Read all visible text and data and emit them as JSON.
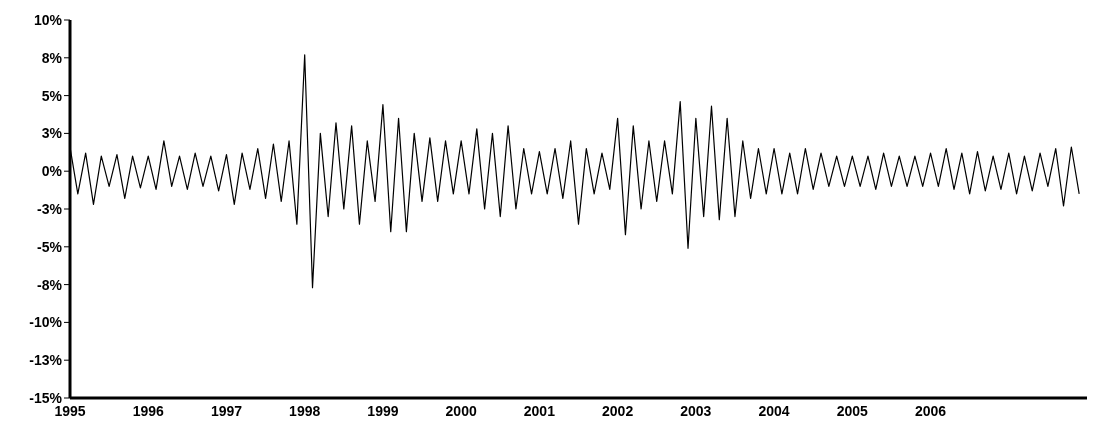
{
  "chart_data": {
    "type": "line",
    "x": [
      1995.0,
      1995.1,
      1995.2,
      1995.3,
      1995.4,
      1995.5,
      1995.6,
      1995.7,
      1995.8,
      1995.9,
      1996.0,
      1996.1,
      1996.2,
      1996.3,
      1996.4,
      1996.5,
      1996.6,
      1996.7,
      1996.8,
      1996.9,
      1997.0,
      1997.1,
      1997.2,
      1997.3,
      1997.4,
      1997.5,
      1997.6,
      1997.7,
      1997.8,
      1997.9,
      1998.0,
      1998.1,
      1998.2,
      1998.3,
      1998.4,
      1998.5,
      1998.6,
      1998.7,
      1998.8,
      1998.9,
      1999.0,
      1999.1,
      1999.2,
      1999.3,
      1999.4,
      1999.5,
      1999.6,
      1999.7,
      1999.8,
      1999.9,
      2000.0,
      2000.1,
      2000.2,
      2000.3,
      2000.4,
      2000.5,
      2000.6,
      2000.7,
      2000.8,
      2000.9,
      2001.0,
      2001.1,
      2001.2,
      2001.3,
      2001.4,
      2001.5,
      2001.6,
      2001.7,
      2001.8,
      2001.9,
      2002.0,
      2002.1,
      2002.2,
      2002.3,
      2002.4,
      2002.5,
      2002.6,
      2002.7,
      2002.8,
      2002.9,
      2003.0,
      2003.1,
      2003.2,
      2003.3,
      2003.4,
      2003.5,
      2003.6,
      2003.7,
      2003.8,
      2003.9,
      2004.0,
      2004.1,
      2004.2,
      2004.3,
      2004.4,
      2004.5,
      2004.6,
      2004.7,
      2004.8,
      2004.9,
      2005.0,
      2005.1,
      2005.2,
      2005.3,
      2005.4,
      2005.5,
      2005.6,
      2005.7,
      2005.8,
      2005.9,
      2006.0,
      2006.1,
      2006.2,
      2006.3,
      2006.4,
      2006.5,
      2006.6,
      2006.7,
      2006.8,
      2006.9,
      2007.0,
      2007.1,
      2007.2,
      2007.3,
      2007.4,
      2007.5,
      2007.6,
      2007.7,
      2007.8,
      2007.9
    ],
    "series": [
      {
        "color": "#000000",
        "values": [
          1.6,
          -1.5,
          1.2,
          -2.2,
          1.0,
          -1.0,
          1.1,
          -1.8,
          1.0,
          -1.1,
          1.0,
          -1.2,
          2.0,
          -1.0,
          1.0,
          -1.2,
          1.2,
          -1.0,
          1.0,
          -1.3,
          1.1,
          -2.2,
          1.2,
          -1.2,
          1.5,
          -1.8,
          1.8,
          -2.0,
          2.0,
          -3.5,
          7.7,
          -7.7,
          2.5,
          -3.0,
          3.2,
          -2.5,
          3.0,
          -3.5,
          2.0,
          -2.0,
          4.4,
          -4.0,
          3.5,
          -4.0,
          2.5,
          -2.0,
          2.2,
          -2.0,
          2.0,
          -1.5,
          2.0,
          -1.5,
          2.8,
          -2.5,
          2.5,
          -3.0,
          3.0,
          -2.5,
          1.5,
          -1.5,
          1.3,
          -1.5,
          1.5,
          -1.8,
          2.0,
          -3.5,
          1.5,
          -1.5,
          1.2,
          -1.2,
          3.5,
          -4.2,
          3.0,
          -2.5,
          2.0,
          -2.0,
          2.0,
          -1.5,
          4.6,
          -5.1,
          3.5,
          -3.0,
          4.3,
          -3.2,
          3.5,
          -3.0,
          2.0,
          -1.8,
          1.5,
          -1.5,
          1.5,
          -1.5,
          1.2,
          -1.5,
          1.5,
          -1.2,
          1.2,
          -1.0,
          1.0,
          -1.0,
          1.0,
          -1.0,
          1.0,
          -1.2,
          1.2,
          -1.0,
          1.0,
          -1.0,
          1.0,
          -1.0,
          1.2,
          -1.0,
          1.5,
          -1.2,
          1.2,
          -1.5,
          1.3,
          -1.3,
          1.0,
          -1.2,
          1.2,
          -1.5,
          1.0,
          -1.3,
          1.2,
          -1.0,
          1.5,
          -2.3,
          1.6,
          -1.5
        ]
      }
    ],
    "xlim": [
      1995,
      2008
    ],
    "xticks": [
      1995,
      1996,
      1997,
      1998,
      1999,
      2000,
      2001,
      2002,
      2003,
      2004,
      2005,
      2006
    ],
    "ylim": [
      -15,
      10
    ],
    "yticks": [
      {
        "value": 10,
        "label": "10%"
      },
      {
        "value": 7.5,
        "label": "8%"
      },
      {
        "value": 5,
        "label": "5%"
      },
      {
        "value": 2.5,
        "label": "3%"
      },
      {
        "value": 0,
        "label": "0%"
      },
      {
        "value": -2.5,
        "label": "-3%"
      },
      {
        "value": -5,
        "label": "-5%"
      },
      {
        "value": -7.5,
        "label": "-8%"
      },
      {
        "value": -10,
        "label": "-10%"
      },
      {
        "value": -12.5,
        "label": "-13%"
      },
      {
        "value": -15,
        "label": "-15%"
      }
    ]
  }
}
